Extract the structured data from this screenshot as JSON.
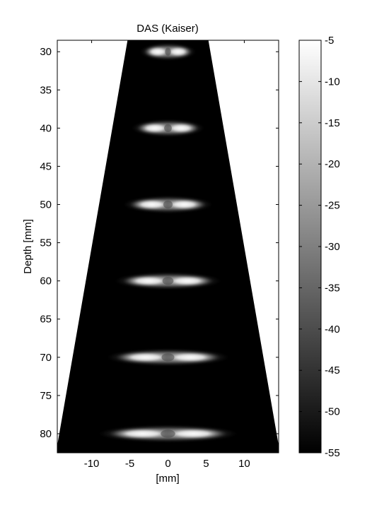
{
  "chart_data": {
    "type": "heatmap",
    "title": "DAS (Kaiser)",
    "xlabel": "[mm]",
    "ylabel": "Depth [mm]",
    "xlim": [
      -14.5,
      14.5
    ],
    "ylim": [
      28.5,
      82.5
    ],
    "y_reversed": true,
    "x_ticks": [
      -10,
      -5,
      0,
      5,
      10
    ],
    "y_ticks": [
      30,
      35,
      40,
      45,
      50,
      55,
      60,
      65,
      70,
      75,
      80
    ],
    "colormap": "gray",
    "clim": [
      -55,
      -5
    ],
    "colorbar_ticks": [
      -5,
      -10,
      -15,
      -20,
      -25,
      -30,
      -35,
      -40,
      -45,
      -50,
      -55
    ],
    "sector": {
      "apex_depth": -2,
      "half_angle_deg": 9.85,
      "min_depth": 28.5,
      "max_depth": 84.5
    },
    "point_targets": [
      {
        "x": 0,
        "depth": 30
      },
      {
        "x": 0,
        "depth": 40
      },
      {
        "x": 0,
        "depth": 50
      },
      {
        "x": 0,
        "depth": 60
      },
      {
        "x": 0,
        "depth": 70
      },
      {
        "x": 0,
        "depth": 80
      }
    ],
    "colors": {
      "background": "#000000",
      "axes": "#000000",
      "figure": "#ffffff"
    }
  }
}
